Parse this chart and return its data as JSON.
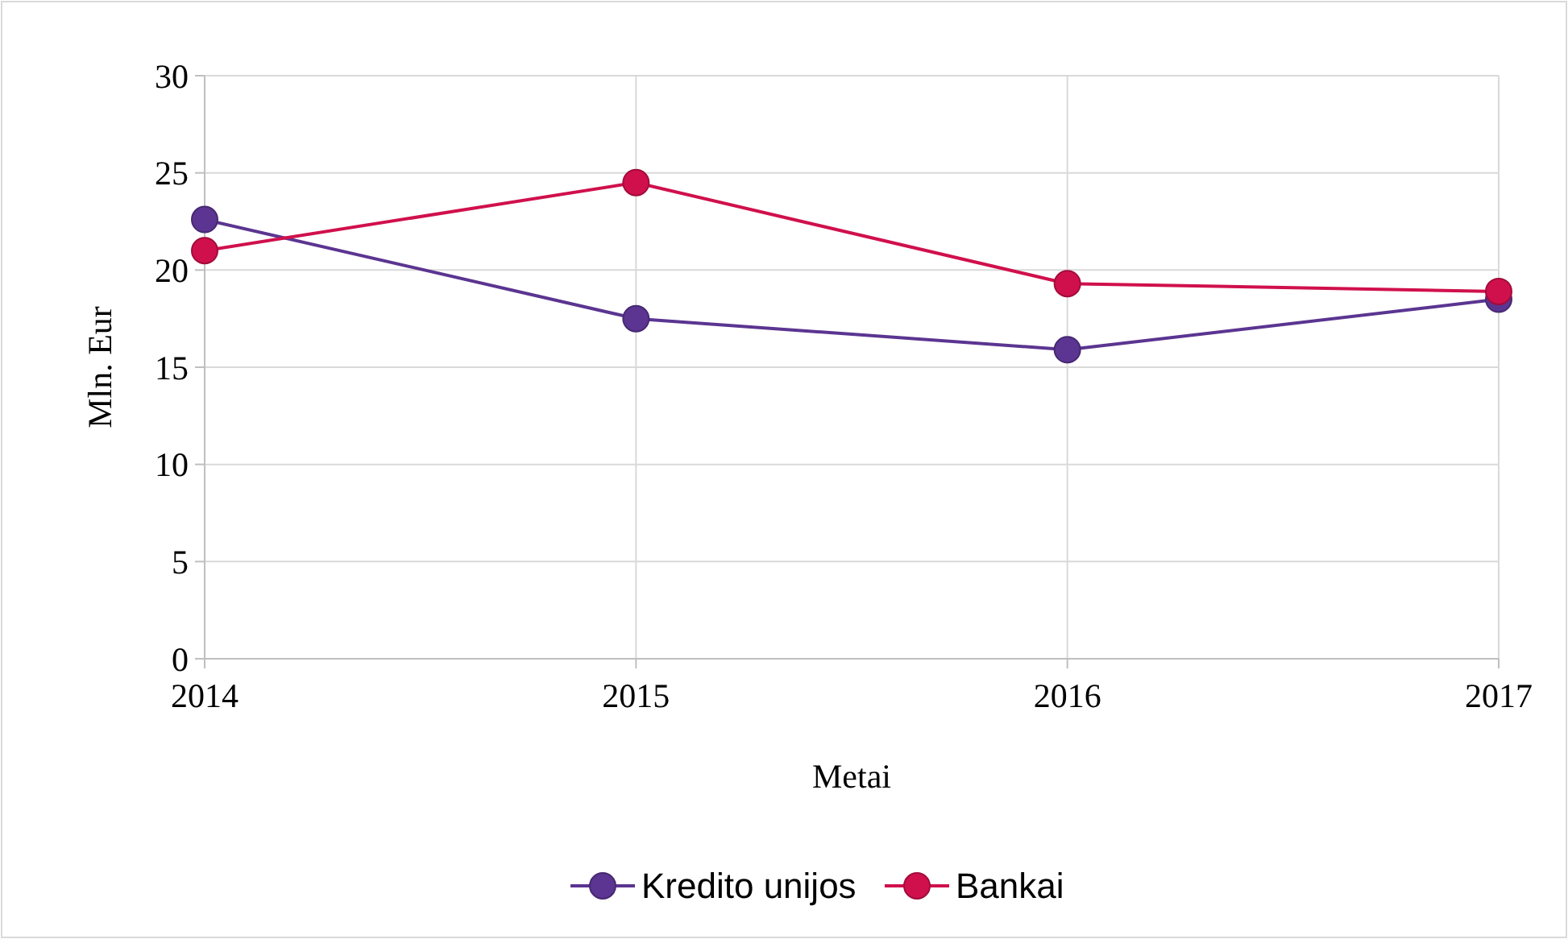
{
  "chart_data": {
    "type": "line",
    "xlabel": "Metai",
    "ylabel": "Mln. Eur",
    "x": [
      2014,
      2015,
      2016,
      2017
    ],
    "xlim": [
      2014,
      2017
    ],
    "xticks": [
      2014,
      2015,
      2016,
      2017
    ],
    "ylim": [
      0,
      30
    ],
    "yticks": [
      0,
      5,
      10,
      15,
      20,
      25,
      30
    ],
    "grid": true,
    "legend": "bottom",
    "marker": "circle",
    "line_style": "solid",
    "series": [
      {
        "name": "Kredito unijos",
        "color": "#5b3591",
        "values": [
          22.6,
          17.5,
          15.9,
          18.5
        ]
      },
      {
        "name": "Bankai",
        "color": "#d0104c",
        "values": [
          21.0,
          24.5,
          19.3,
          18.9
        ]
      }
    ]
  }
}
